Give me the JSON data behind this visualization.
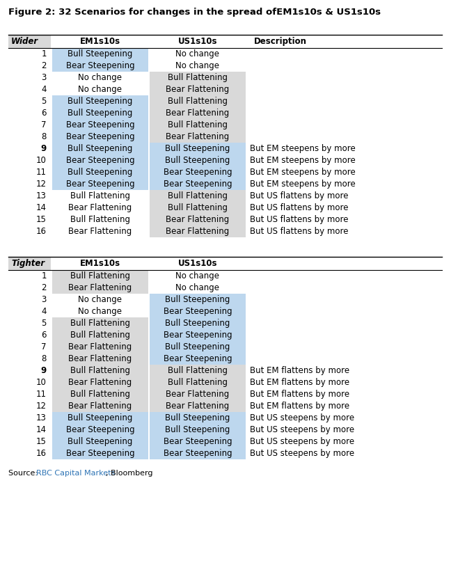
{
  "title_part1": "Figure 2: 32 Scenarios for changes in the spread of",
  "title_part2": "EM1s10s & US1s10s",
  "wider_header": [
    "Wider",
    "EM1s10s",
    "US1s10s",
    "Description"
  ],
  "tighter_header": [
    "Tighter",
    "EM1s10s",
    "US1s10s"
  ],
  "wider_rows": [
    [
      "1",
      "Bull Steepening",
      "No change",
      ""
    ],
    [
      "2",
      "Bear Steepening",
      "No change",
      ""
    ],
    [
      "3",
      "No change",
      "Bull Flattening",
      ""
    ],
    [
      "4",
      "No change",
      "Bear Flattening",
      ""
    ],
    [
      "5",
      "Bull Steepening",
      "Bull Flattening",
      ""
    ],
    [
      "6",
      "Bull Steepening",
      "Bear Flattening",
      ""
    ],
    [
      "7",
      "Bear Steepening",
      "Bull Flattening",
      ""
    ],
    [
      "8",
      "Bear Steepening",
      "Bear Flattening",
      ""
    ],
    [
      "9",
      "Bull Steepening",
      "Bull Steepening",
      "But EM steepens by more"
    ],
    [
      "10",
      "Bear Steepening",
      "Bull Steepening",
      "But EM steepens by more"
    ],
    [
      "11",
      "Bull Steepening",
      "Bear Steepening",
      "But EM steepens by more"
    ],
    [
      "12",
      "Bear Steepening",
      "Bear Steepening",
      "But EM steepens by more"
    ],
    [
      "13",
      "Bull Flattening",
      "Bull Flattening",
      "But US flattens by more"
    ],
    [
      "14",
      "Bear Flattening",
      "Bull Flattening",
      "But US flattens by more"
    ],
    [
      "15",
      "Bull Flattening",
      "Bear Flattening",
      "But US flattens by more"
    ],
    [
      "16",
      "Bear Flattening",
      "Bear Flattening",
      "But US flattens by more"
    ]
  ],
  "tighter_rows": [
    [
      "1",
      "Bull Flattening",
      "No change",
      ""
    ],
    [
      "2",
      "Bear Flattening",
      "No change",
      ""
    ],
    [
      "3",
      "No change",
      "Bull Steepening",
      ""
    ],
    [
      "4",
      "No change",
      "Bear Steepening",
      ""
    ],
    [
      "5",
      "Bull Flattening",
      "Bull Steepening",
      ""
    ],
    [
      "6",
      "Bull Flattening",
      "Bear Steepening",
      ""
    ],
    [
      "7",
      "Bear Flattening",
      "Bull Steepening",
      ""
    ],
    [
      "8",
      "Bear Flattening",
      "Bear Steepening",
      ""
    ],
    [
      "9",
      "Bull Flattening",
      "Bull Flattening",
      "But EM flattens by more"
    ],
    [
      "10",
      "Bear Flattening",
      "Bull Flattening",
      "But EM flattens by more"
    ],
    [
      "11",
      "Bull Flattening",
      "Bear Flattening",
      "But EM flattens by more"
    ],
    [
      "12",
      "Bear Flattening",
      "Bear Flattening",
      "But EM flattens by more"
    ],
    [
      "13",
      "Bull Steepening",
      "Bull Steepening",
      "But US steepens by more"
    ],
    [
      "14",
      "Bear Steepening",
      "Bull Steepening",
      "But US steepens by more"
    ],
    [
      "15",
      "Bull Steepening",
      "Bear Steepening",
      "But US steepens by more"
    ],
    [
      "16",
      "Bear Steepening",
      "Bear Steepening",
      "But US steepens by more"
    ]
  ],
  "color_blue_light": "#BDD7EE",
  "color_gray_light": "#D9D9D9",
  "color_white": "#FFFFFF",
  "fig_width": 6.48,
  "fig_height": 8.19,
  "dpi": 100
}
